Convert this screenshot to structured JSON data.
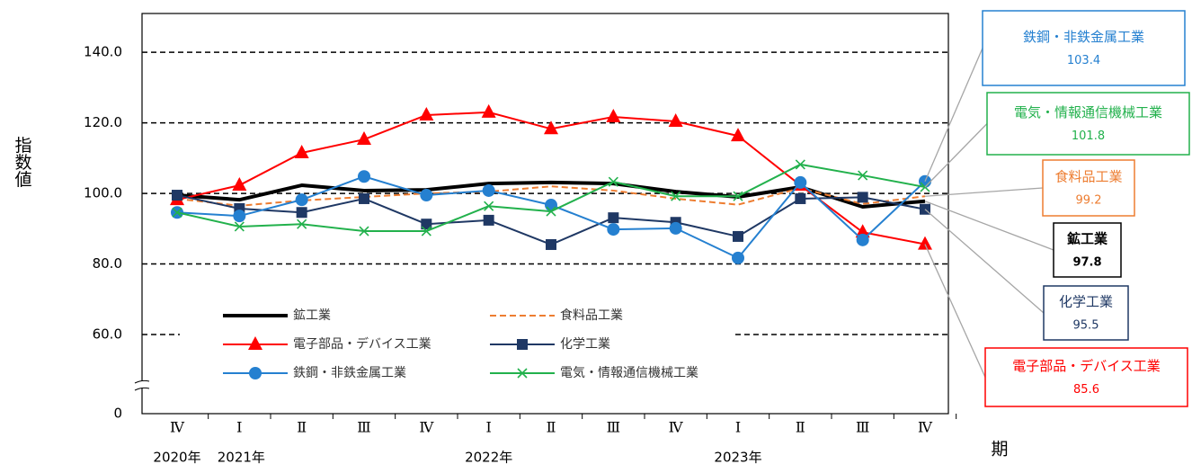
{
  "chart_data": {
    "type": "line",
    "y_label": "指数値",
    "x_label": "期",
    "categories": [
      "Ⅳ",
      "Ⅰ",
      "Ⅱ",
      "Ⅲ",
      "Ⅳ",
      "Ⅰ",
      "Ⅱ",
      "Ⅲ",
      "Ⅳ",
      "Ⅰ",
      "Ⅱ",
      "Ⅲ",
      "Ⅳ"
    ],
    "year_labels": [
      "2020年",
      "2021年",
      null,
      null,
      null,
      "2022年",
      null,
      null,
      null,
      "2023年",
      null,
      null,
      null
    ],
    "ylim": [
      0,
      151
    ],
    "axis_break": true,
    "yticks": [
      {
        "value": 0,
        "label": "0"
      },
      {
        "value": 60,
        "label": "60.0"
      },
      {
        "value": 80,
        "label": "80.0"
      },
      {
        "value": 100,
        "label": "100.0"
      },
      {
        "value": 120,
        "label": "120.0"
      },
      {
        "value": 140,
        "label": "140.0"
      }
    ],
    "grid": true,
    "series": [
      {
        "name": "鉱工業",
        "color": "#000000",
        "marker": "none",
        "dash": false,
        "width": 4,
        "values": [
          99.5,
          98.2,
          102.3,
          100.8,
          101.0,
          102.8,
          103.1,
          102.8,
          100.5,
          99.0,
          101.8,
          96.2,
          97.8
        ],
        "end_label": "97.8"
      },
      {
        "name": "食料品工業",
        "color": "#ed7d31",
        "marker": "none",
        "dash": true,
        "width": 2,
        "values": [
          98.5,
          96.5,
          98.0,
          99.0,
          100.0,
          100.5,
          102.0,
          100.8,
          98.5,
          96.8,
          101.5,
          97.0,
          99.2
        ],
        "end_label": "99.2"
      },
      {
        "name": "電子部品・デバイス工業",
        "color": "#ff0000",
        "marker": "triangle",
        "dash": false,
        "width": 2,
        "values": [
          98.2,
          102.3,
          111.5,
          115.3,
          122.2,
          123.0,
          118.3,
          121.7,
          120.4,
          116.3,
          102.3,
          89.0,
          85.6
        ],
        "end_label": "85.6"
      },
      {
        "name": "化学工業",
        "color": "#1f3864",
        "marker": "square",
        "dash": false,
        "width": 2,
        "values": [
          99.5,
          95.7,
          94.6,
          98.5,
          91.3,
          92.4,
          85.5,
          93.1,
          91.8,
          87.8,
          98.5,
          98.9,
          95.5
        ],
        "end_label": "95.5"
      },
      {
        "name": "鉄鋼・非鉄金属工業",
        "color": "#2580d0",
        "marker": "circle",
        "dash": false,
        "width": 2,
        "values": [
          94.6,
          93.6,
          98.2,
          104.8,
          99.5,
          100.8,
          96.7,
          89.8,
          90.1,
          81.7,
          103.1,
          86.8,
          103.4
        ],
        "end_label": "103.4"
      },
      {
        "name": "電気・情報通信機械工業",
        "color": "#22b14c",
        "marker": "x",
        "dash": false,
        "width": 2,
        "values": [
          94.6,
          90.6,
          91.3,
          89.3,
          89.3,
          96.4,
          94.9,
          103.3,
          99.2,
          99.2,
          108.2,
          105.1,
          101.8
        ],
        "end_label": "101.8"
      }
    ]
  }
}
